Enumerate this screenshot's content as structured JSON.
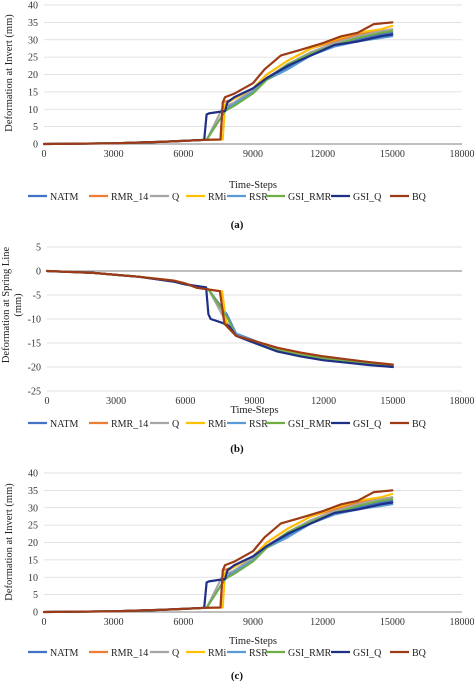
{
  "colors": {
    "NATM": "#4472C4",
    "RMR_14": "#ED7D31",
    "Q": "#A5A5A5",
    "RMi": "#FFC000",
    "RSR": "#5B9BD5",
    "GSI_RMR": "#70AD47",
    "GSI_Q": "#1F2F86",
    "BQ": "#9E3B17",
    "grid": "#d9d9d9",
    "axis": "#7f7f7f"
  },
  "chart_data": [
    {
      "type": "line",
      "panel_label": "(a)",
      "xlabel": "Time-Steps",
      "ylabel": "Deformation at Invert (mm)",
      "xlim": [
        0,
        18000
      ],
      "ylim": [
        0,
        40
      ],
      "xticks": [
        0,
        3000,
        6000,
        9000,
        12000,
        15000,
        18000
      ],
      "yticks": [
        0,
        5,
        10,
        15,
        20,
        25,
        30,
        35,
        40
      ],
      "grid": "horizontal",
      "legend_position": "bottom",
      "series": [
        {
          "name": "NATM",
          "x": [
            0,
            3000,
            5000,
            6000,
            7000,
            7800,
            8200,
            9000,
            9600,
            10500,
            11500,
            12500,
            13500,
            14500,
            15000
          ],
          "y": [
            0,
            0.2,
            0.6,
            0.9,
            1.2,
            9.5,
            12,
            15.5,
            19,
            22,
            26,
            28.5,
            30,
            31.5,
            32
          ]
        },
        {
          "name": "RMR_14",
          "x": [
            0,
            3000,
            5000,
            6000,
            7000,
            7600,
            7700,
            8200,
            9000,
            9600,
            10500,
            11500,
            12500,
            13500,
            14500,
            15000
          ],
          "y": [
            0,
            0.2,
            0.6,
            0.9,
            1.2,
            1.3,
            12,
            13,
            16,
            20,
            24,
            27.5,
            29.5,
            31.5,
            32.5,
            33
          ]
        },
        {
          "name": "Q",
          "x": [
            0,
            3000,
            5000,
            6000,
            7000,
            7700,
            8200,
            9000,
            9600,
            10500,
            11500,
            12500,
            13500,
            14500,
            15000
          ],
          "y": [
            0,
            0.2,
            0.6,
            0.9,
            1.2,
            10.5,
            12,
            15.5,
            19,
            23,
            26.5,
            29,
            31,
            32.5,
            33
          ]
        },
        {
          "name": "RMi",
          "x": [
            0,
            3000,
            5000,
            6000,
            7000,
            7700,
            7800,
            8200,
            9000,
            9600,
            10500,
            11500,
            12500,
            13500,
            14500,
            15000
          ],
          "y": [
            0,
            0.2,
            0.6,
            0.9,
            1.2,
            1.3,
            11.5,
            13,
            16,
            20,
            24,
            27.5,
            30,
            32,
            33,
            34
          ]
        },
        {
          "name": "RSR",
          "x": [
            0,
            3000,
            5000,
            6000,
            7000,
            7800,
            8200,
            9000,
            9600,
            10500,
            11500,
            12500,
            13500,
            14500,
            15000
          ],
          "y": [
            0,
            0.2,
            0.6,
            0.9,
            1.2,
            9.5,
            11.5,
            15,
            18.5,
            21.5,
            25.5,
            28,
            29.5,
            30.5,
            31
          ]
        },
        {
          "name": "GSI_RMR",
          "x": [
            0,
            3000,
            5000,
            6000,
            7000,
            7800,
            8200,
            9000,
            9600,
            10500,
            11500,
            12500,
            13500,
            14500,
            15000
          ],
          "y": [
            0,
            0.2,
            0.6,
            0.9,
            1.2,
            9.5,
            11,
            14.5,
            18.5,
            23,
            26,
            28.5,
            30.5,
            32,
            32.5
          ]
        },
        {
          "name": "GSI_Q",
          "x": [
            0,
            3000,
            5000,
            6000,
            6900,
            7000,
            7100,
            7800,
            7900,
            8200,
            9000,
            9600,
            10500,
            11500,
            12500,
            13500,
            14500,
            15000
          ],
          "y": [
            0,
            0.2,
            0.6,
            0.9,
            1.2,
            8.5,
            8.8,
            9.5,
            12,
            13.5,
            16,
            19,
            22.5,
            25.5,
            28.5,
            29.5,
            31,
            31.5
          ]
        },
        {
          "name": "BQ",
          "x": [
            0,
            3000,
            5000,
            6000,
            7000,
            7600,
            7700,
            7800,
            8200,
            9000,
            9500,
            10200,
            11000,
            12000,
            12800,
            13500,
            14200,
            15000
          ],
          "y": [
            0,
            0.2,
            0.6,
            0.9,
            1.2,
            1.3,
            12,
            13.5,
            14.5,
            17.5,
            21.5,
            25.5,
            27,
            29,
            31,
            32,
            34.5,
            35
          ]
        }
      ]
    },
    {
      "type": "line",
      "panel_label": "(b)",
      "xlabel": "Time-Steps",
      "ylabel": "Deformation at Spring Line (mm)",
      "xlim": [
        0,
        18000
      ],
      "ylim": [
        -25,
        5
      ],
      "xticks": [
        0,
        3000,
        6000,
        9000,
        12000,
        15000,
        18000
      ],
      "yticks": [
        -25,
        -20,
        -15,
        -10,
        -5,
        0,
        5
      ],
      "grid": "horizontal",
      "legend_position": "bottom",
      "series": [
        {
          "name": "NATM",
          "x": [
            0,
            2000,
            4000,
            5500,
            6000,
            7000,
            7800,
            8200,
            9000,
            10000,
            11000,
            12000,
            13000,
            14000,
            15000
          ],
          "y": [
            0,
            -0.4,
            -1.2,
            -2.2,
            -2.8,
            -3.8,
            -9,
            -13,
            -14.5,
            -16.5,
            -17.5,
            -18.2,
            -18.8,
            -19.3,
            -19.8
          ]
        },
        {
          "name": "RMR_14",
          "x": [
            0,
            2000,
            4000,
            5500,
            6000,
            6500,
            7500,
            7700,
            8200,
            9000,
            10000,
            11000,
            12000,
            13000,
            14000,
            15000
          ],
          "y": [
            0,
            -0.4,
            -1.2,
            -2,
            -2.6,
            -3.5,
            -4.2,
            -11,
            -13.5,
            -14.8,
            -16.3,
            -17.2,
            -17.9,
            -18.5,
            -19,
            -19.5
          ]
        },
        {
          "name": "Q",
          "x": [
            0,
            2000,
            4000,
            5500,
            6000,
            7000,
            7700,
            8200,
            9000,
            10000,
            11000,
            12000,
            13000,
            14000,
            15000
          ],
          "y": [
            0,
            -0.4,
            -1.2,
            -2.1,
            -2.6,
            -3.8,
            -10,
            -13.5,
            -14.6,
            -16.5,
            -17.4,
            -18.1,
            -18.7,
            -19.2,
            -19.7
          ]
        },
        {
          "name": "RMi",
          "x": [
            0,
            2000,
            4000,
            5500,
            6000,
            6500,
            7600,
            7800,
            8200,
            9000,
            10000,
            11000,
            12000,
            13000,
            14000,
            15000
          ],
          "y": [
            0,
            -0.4,
            -1.2,
            -2,
            -2.6,
            -3.5,
            -4.2,
            -11.5,
            -13.5,
            -14.8,
            -16.3,
            -17.2,
            -17.9,
            -18.5,
            -19,
            -19.5
          ]
        },
        {
          "name": "RSR",
          "x": [
            0,
            2000,
            4000,
            5500,
            6000,
            7000,
            7800,
            8200,
            9000,
            10000,
            11000,
            12000,
            13000,
            14000,
            15000
          ],
          "y": [
            0,
            -0.4,
            -1.2,
            -2.2,
            -2.8,
            -3.8,
            -9.5,
            -13,
            -14.6,
            -16.5,
            -17.5,
            -18.2,
            -18.8,
            -19.3,
            -19.8
          ]
        },
        {
          "name": "GSI_RMR",
          "x": [
            0,
            2000,
            4000,
            5500,
            6000,
            7000,
            7800,
            8200,
            9000,
            10000,
            11000,
            12000,
            13000,
            14000,
            15000
          ],
          "y": [
            0,
            -0.4,
            -1.2,
            -2.2,
            -2.8,
            -3.8,
            -9.5,
            -13.5,
            -14.6,
            -16.5,
            -17.5,
            -18.2,
            -18.8,
            -19.3,
            -19.8
          ]
        },
        {
          "name": "GSI_Q",
          "x": [
            0,
            2000,
            4000,
            5500,
            6000,
            6900,
            7000,
            7100,
            7600,
            7900,
            8200,
            9000,
            10000,
            11000,
            12000,
            13000,
            14000,
            15000
          ],
          "y": [
            0,
            -0.4,
            -1.2,
            -2.2,
            -2.8,
            -3.4,
            -9,
            -10,
            -10.8,
            -11.5,
            -13.5,
            -15,
            -16.8,
            -17.8,
            -18.6,
            -19.1,
            -19.6,
            -20
          ]
        },
        {
          "name": "BQ",
          "x": [
            0,
            2000,
            4000,
            5500,
            6000,
            6500,
            7500,
            7700,
            8200,
            9000,
            10000,
            11000,
            12000,
            13000,
            14000,
            15000
          ],
          "y": [
            0,
            -0.4,
            -1.2,
            -2,
            -2.6,
            -3.5,
            -4.2,
            -11,
            -13.5,
            -14.6,
            -16,
            -17,
            -17.8,
            -18.4,
            -19,
            -19.5
          ]
        }
      ]
    },
    {
      "type": "line",
      "panel_label": "(c)",
      "xlabel": "Time-Steps",
      "ylabel": "Deformation at Invert (mm)",
      "xlim": [
        0,
        18000
      ],
      "ylim": [
        0,
        40
      ],
      "xticks": [
        0,
        3000,
        6000,
        9000,
        12000,
        15000,
        18000
      ],
      "yticks": [
        0,
        5,
        10,
        15,
        20,
        25,
        30,
        35,
        40
      ],
      "grid": "horizontal",
      "legend_position": "bottom",
      "series": [
        {
          "name": "NATM",
          "x": [
            0,
            3000,
            5000,
            6000,
            7000,
            7800,
            8200,
            9000,
            9600,
            10500,
            11500,
            12500,
            13500,
            14500,
            15000
          ],
          "y": [
            0,
            0.2,
            0.6,
            0.9,
            1.2,
            9.5,
            12,
            15.5,
            19,
            22,
            26,
            28.5,
            30,
            31.5,
            32
          ]
        },
        {
          "name": "RMR_14",
          "x": [
            0,
            3000,
            5000,
            6000,
            7000,
            7600,
            7700,
            8200,
            9000,
            9600,
            10500,
            11500,
            12500,
            13500,
            14500,
            15000
          ],
          "y": [
            0,
            0.2,
            0.6,
            0.9,
            1.2,
            1.3,
            12,
            13,
            16,
            20,
            24,
            27.5,
            29.5,
            31.5,
            32.5,
            33
          ]
        },
        {
          "name": "Q",
          "x": [
            0,
            3000,
            5000,
            6000,
            7000,
            7700,
            8200,
            9000,
            9600,
            10500,
            11500,
            12500,
            13500,
            14500,
            15000
          ],
          "y": [
            0,
            0.2,
            0.6,
            0.9,
            1.2,
            10.5,
            12,
            15.5,
            19,
            23,
            26.5,
            29,
            31,
            32.5,
            33
          ]
        },
        {
          "name": "RMi",
          "x": [
            0,
            3000,
            5000,
            6000,
            7000,
            7700,
            7800,
            8200,
            9000,
            9600,
            10500,
            11500,
            12500,
            13500,
            14500,
            15000
          ],
          "y": [
            0,
            0.2,
            0.6,
            0.9,
            1.2,
            1.3,
            11.5,
            13,
            16,
            20,
            24,
            27.5,
            30,
            32,
            33,
            34
          ]
        },
        {
          "name": "RSR",
          "x": [
            0,
            3000,
            5000,
            6000,
            7000,
            7800,
            8200,
            9000,
            9600,
            10500,
            11500,
            12500,
            13500,
            14500,
            15000
          ],
          "y": [
            0,
            0.2,
            0.6,
            0.9,
            1.2,
            9.5,
            11.5,
            15,
            18.5,
            21.5,
            25.5,
            28,
            29.5,
            30.5,
            31
          ]
        },
        {
          "name": "GSI_RMR",
          "x": [
            0,
            3000,
            5000,
            6000,
            7000,
            7800,
            8200,
            9000,
            9600,
            10500,
            11500,
            12500,
            13500,
            14500,
            15000
          ],
          "y": [
            0,
            0.2,
            0.6,
            0.9,
            1.2,
            9.5,
            11,
            14.5,
            18.5,
            23,
            26,
            28.5,
            30.5,
            32,
            32.5
          ]
        },
        {
          "name": "GSI_Q",
          "x": [
            0,
            3000,
            5000,
            6000,
            6900,
            7000,
            7100,
            7800,
            7900,
            8200,
            9000,
            9600,
            10500,
            11500,
            12500,
            13500,
            14500,
            15000
          ],
          "y": [
            0,
            0.2,
            0.6,
            0.9,
            1.2,
            8.5,
            8.8,
            9.5,
            12,
            13.5,
            16,
            19,
            22.5,
            25.5,
            28.5,
            29.5,
            31,
            31.5
          ]
        },
        {
          "name": "BQ",
          "x": [
            0,
            3000,
            5000,
            6000,
            7000,
            7600,
            7700,
            7800,
            8200,
            9000,
            9500,
            10200,
            11000,
            12000,
            12800,
            13500,
            14200,
            15000
          ],
          "y": [
            0,
            0.2,
            0.6,
            0.9,
            1.2,
            1.3,
            12,
            13.5,
            14.5,
            17.5,
            21.5,
            25.5,
            27,
            29,
            31,
            32,
            34.5,
            35
          ]
        }
      ]
    }
  ]
}
